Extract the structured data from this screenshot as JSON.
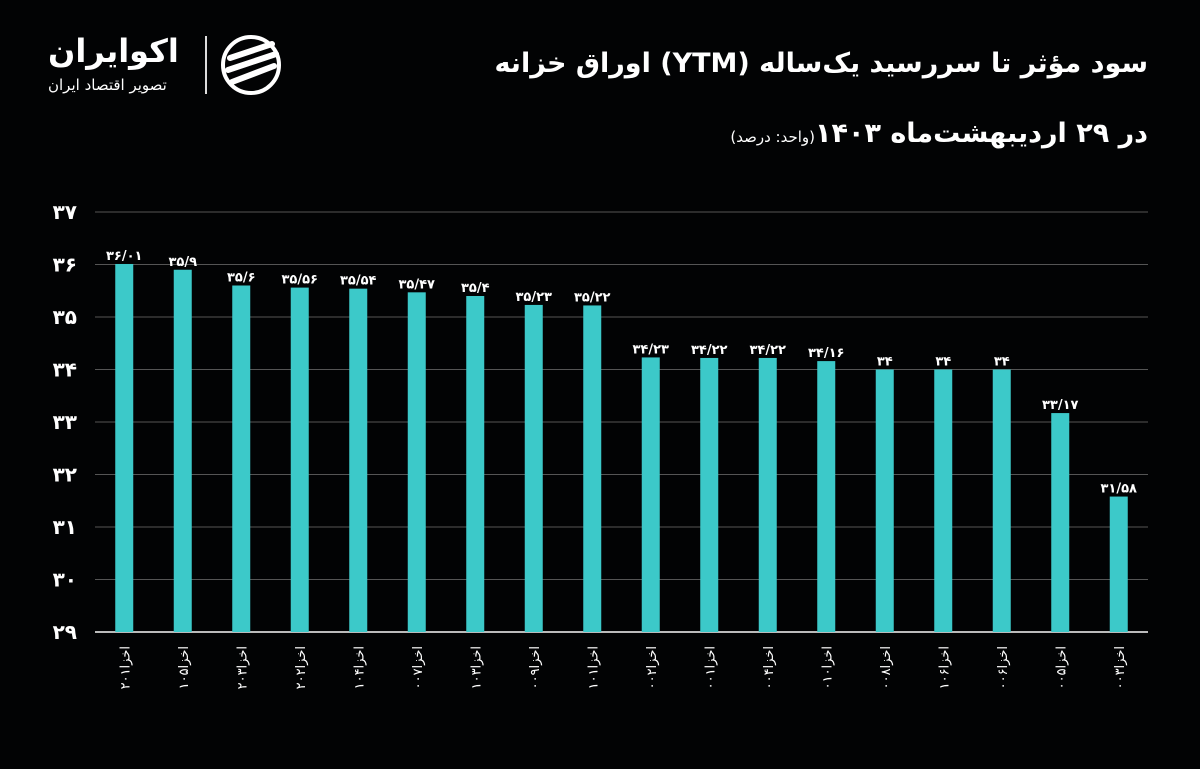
{
  "header": {
    "title": "سود مؤثر تا سررسید یک‌ساله (YTM) اوراق خزانه",
    "subtitle": "در ۲۹ اردیبهشت‌ماه ۱۴۰۳",
    "unit": "(واحد: درصد)"
  },
  "logo": {
    "name": "اکوایران",
    "tagline": "تصویر اقتصاد ایران"
  },
  "colors": {
    "bar": "#3cc9c9",
    "background": "#020304",
    "text": "#ffffff",
    "grid": "#555555"
  },
  "chart_data": {
    "type": "bar",
    "title": "سود مؤثر تا سررسید یک‌ساله (YTM) اوراق خزانه",
    "ylim": [
      29,
      37
    ],
    "yticks": [
      29,
      30,
      31,
      32,
      33,
      34,
      35,
      36,
      37
    ],
    "ytick_labels": [
      "۲۹",
      "۳۰",
      "۳۱",
      "۳۲",
      "۳۳",
      "۳۴",
      "۳۵",
      "۳۶",
      "۳۷"
    ],
    "grid": true,
    "categories": [
      "اخزا۲۰۱",
      "اخزا۱۰۵",
      "اخزا۲۰۳",
      "اخزا۲۰۲",
      "اخزا۱۰۴",
      "اخزا۰۰۷",
      "اخزا۱۰۳",
      "اخزا۰۰۹",
      "اخزا۱۰۱",
      "اخزا۰۰۲",
      "اخزا۰۰۱",
      "اخزا۰۰۴",
      "اخزا۰۱۰",
      "اخزا۰۰۸",
      "اخزا۱۰۶",
      "اخزا۰۰۶",
      "اخزا۰۰۵",
      "اخزا۰۰۳"
    ],
    "values": [
      36.01,
      35.9,
      35.6,
      35.56,
      35.54,
      35.47,
      35.4,
      35.23,
      35.22,
      34.23,
      34.22,
      34.22,
      34.16,
      34,
      34,
      34,
      33.17,
      31.58
    ],
    "data_labels": [
      "۳۶/۰۱",
      "۳۵/۹",
      "۳۵/۶",
      "۳۵/۵۶",
      "۳۵/۵۴",
      "۳۵/۴۷",
      "۳۵/۴",
      "۳۵/۲۳",
      "۳۵/۲۲",
      "۳۴/۲۳",
      "۳۴/۲۲",
      "۳۴/۲۲",
      "۳۴/۱۶",
      "۳۴",
      "۳۴",
      "۳۴",
      "۳۳/۱۷",
      "۳۱/۵۸"
    ]
  }
}
